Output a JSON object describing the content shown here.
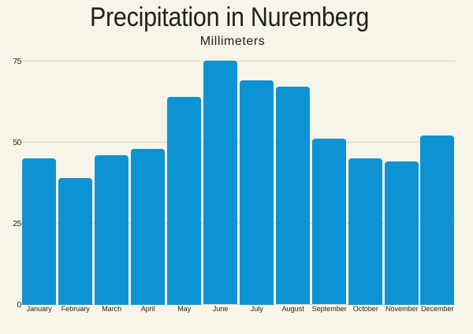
{
  "page": {
    "background_color": "#f7f5e9",
    "text_color": "#21211d"
  },
  "chart_data": {
    "type": "bar",
    "title": "Precipitation in Nuremberg",
    "subtitle": "Millimeters",
    "categories": [
      "January",
      "February",
      "March",
      "April",
      "May",
      "June",
      "July",
      "August",
      "September",
      "October",
      "November",
      "December"
    ],
    "values": [
      45,
      39,
      46,
      48,
      64,
      75,
      69,
      67,
      51,
      45,
      44,
      52
    ],
    "xlabel": "",
    "ylabel": "",
    "ylim": [
      0,
      75
    ],
    "yticks": [
      0,
      25,
      50,
      75
    ],
    "grid": true,
    "legend": false,
    "bar_color": "#0d93d3",
    "grid_color": "#d8d5c4"
  }
}
